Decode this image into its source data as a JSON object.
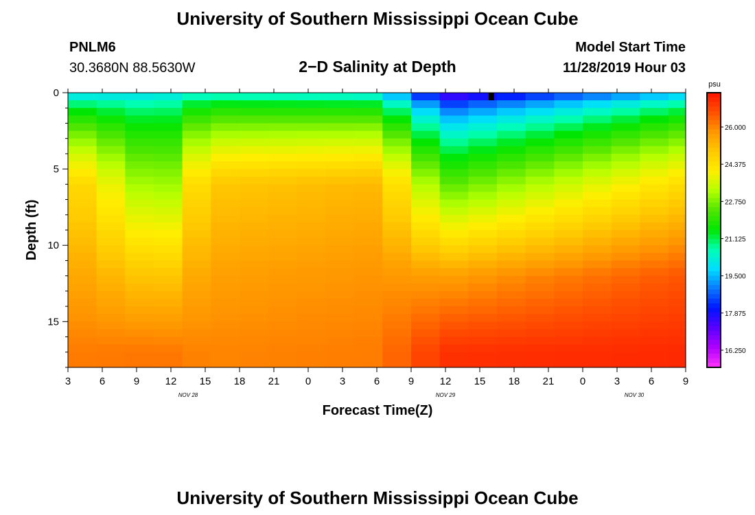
{
  "header": {
    "title": "University of Southern Mississippi Ocean Cube",
    "station_id": "PNLM6",
    "station_coords": "30.3680N 88.5630W",
    "plot_title": "2−D Salinity at Depth",
    "model_start_label": "Model Start Time",
    "model_start_value": "11/28/2019 Hour 03"
  },
  "footer": {
    "title": "University of Southern Mississippi Ocean Cube"
  },
  "chart_data": {
    "type": "heatmap",
    "title": "2−D Salinity at Depth",
    "xlabel": "Forecast Time(Z)",
    "ylabel": "Depth (ft)",
    "x_tick_labels": [
      "3",
      "6",
      "9",
      "12",
      "15",
      "18",
      "21",
      "0",
      "3",
      "6",
      "9",
      "12",
      "15",
      "18",
      "21",
      "0",
      "3",
      "6",
      "9"
    ],
    "x_date_labels": [
      {
        "label": "NOV 28",
        "tick_index": 3.5
      },
      {
        "label": "NOV 29",
        "tick_index": 11
      },
      {
        "label": "NOV 30",
        "tick_index": 16.5
      }
    ],
    "x_range_hours": [
      0,
      54
    ],
    "y_ticks": [
      0,
      5,
      10,
      15
    ],
    "y_range_ft": [
      0,
      18
    ],
    "y_reversed": true,
    "colorbar": {
      "unit": "psu",
      "range": [
        15.5,
        27.5
      ],
      "labels": [
        "26.000",
        "24.375",
        "22.750",
        "21.125",
        "19.500",
        "17.875",
        "16.250"
      ],
      "colors": [
        "#ff33ff",
        "#b000ff",
        "#5a00ff",
        "#0014ff",
        "#0a78ff",
        "#00dcff",
        "#00ffb4",
        "#00e600",
        "#50e600",
        "#b4ff00",
        "#ffee00",
        "#ffc800",
        "#ff9600",
        "#ff5000",
        "#ff1400"
      ]
    },
    "time_hours": [
      0,
      2.5,
      5,
      7.5,
      10,
      12.5,
      15,
      17.5,
      20,
      22.5,
      25,
      27.5,
      30,
      32.5,
      35,
      37.5,
      40,
      42.5,
      45,
      47.5,
      50,
      52.5,
      54
    ],
    "depth_rows_ft": [
      0,
      0.5,
      1,
      1.5,
      2,
      2.5,
      3,
      3.5,
      4,
      4.5,
      5,
      5.5,
      6,
      6.5,
      7,
      7.5,
      8,
      8.5,
      9,
      9.5,
      10,
      10.5,
      11,
      11.5,
      12,
      12.5,
      13,
      13.5,
      14,
      14.5,
      15,
      15.5,
      16,
      16.5,
      17,
      17.5
    ],
    "salinity_profile_columns": [
      {
        "time_h": 0,
        "surface": 19.2,
        "depth_6ft": 24.9,
        "depth_12ft": 25.6,
        "depth_17ft": 26.1
      },
      {
        "time_h": 8,
        "surface": 19.6,
        "depth_6ft": 22.6,
        "depth_12ft": 24.8,
        "depth_17ft": 26.2
      },
      {
        "time_h": 12,
        "surface": 19.8,
        "depth_6ft": 24.9,
        "depth_12ft": 25.6,
        "depth_17ft": 26.0
      },
      {
        "time_h": 27,
        "surface": 19.5,
        "depth_6ft": 25.2,
        "depth_12ft": 25.8,
        "depth_17ft": 26.1
      },
      {
        "time_h": 33,
        "surface": 16.5,
        "depth_6ft": 22.4,
        "depth_12ft": 25.6,
        "depth_17ft": 27.1
      },
      {
        "time_h": 54,
        "surface": 19.0,
        "depth_6ft": 24.5,
        "depth_12ft": 26.6,
        "depth_17ft": 27.2
      }
    ]
  }
}
